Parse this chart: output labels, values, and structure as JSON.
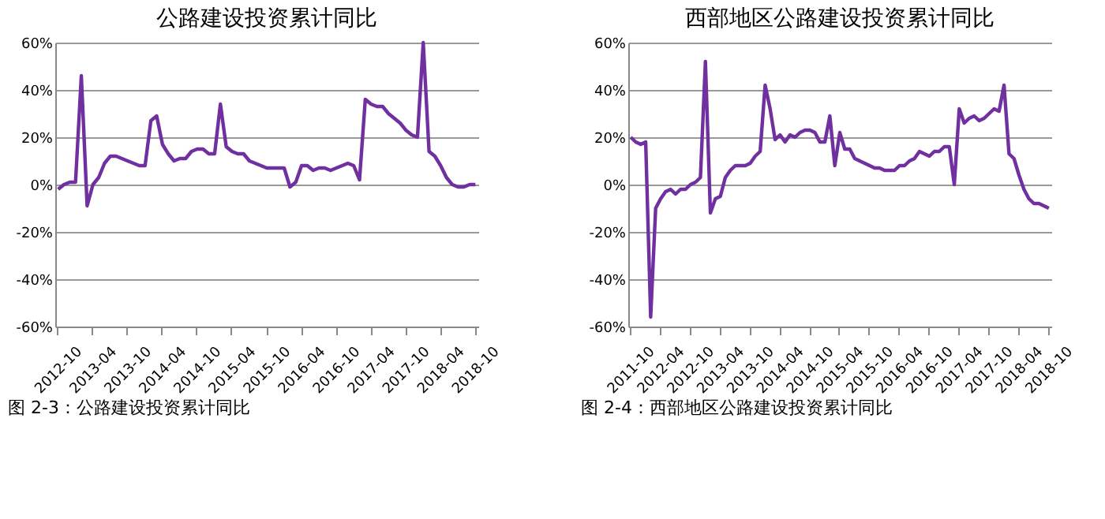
{
  "chart_data": [
    {
      "type": "line",
      "title": "公路建设投资累计同比",
      "annotations": [
        "图 2-3：公路建设投资累计同比"
      ],
      "categories": [
        "2012-10",
        null,
        null,
        null,
        null,
        null,
        "2013-04",
        null,
        null,
        null,
        null,
        null,
        "2013-10",
        null,
        null,
        null,
        null,
        null,
        "2014-04",
        null,
        null,
        null,
        null,
        null,
        "2014-10",
        null,
        null,
        null,
        null,
        null,
        "2015-04",
        null,
        null,
        null,
        null,
        null,
        "2015-10",
        null,
        null,
        null,
        null,
        null,
        "2016-04",
        null,
        null,
        null,
        null,
        null,
        "2016-10",
        null,
        null,
        null,
        null,
        null,
        "2017-04",
        null,
        null,
        null,
        null,
        null,
        "2017-10",
        null,
        null,
        null,
        null,
        null,
        "2018-04",
        null,
        null,
        null,
        null,
        null,
        "2018-10"
      ],
      "series": [
        {
          "color": "#7030a0",
          "values": [
            -2,
            0,
            1,
            1,
            46,
            -9,
            0,
            3,
            9,
            12,
            12,
            11,
            10,
            9,
            8,
            8,
            27,
            29,
            17,
            13,
            10,
            11,
            11,
            14,
            15,
            15,
            13,
            13,
            34,
            16,
            14,
            13,
            13,
            10,
            9,
            8,
            7,
            7,
            7,
            7,
            -1,
            1,
            8,
            8,
            6,
            7,
            7,
            6,
            7,
            8,
            9,
            8,
            2,
            36,
            34,
            33,
            33,
            30,
            28,
            26,
            23,
            21,
            20,
            60,
            14,
            12,
            8,
            3,
            0,
            -1,
            -1,
            0,
            0
          ]
        }
      ],
      "ylim": [
        -60,
        60
      ],
      "yticks": [
        {
          "value": -60,
          "label": "-60%"
        },
        {
          "value": -40,
          "label": "-40%"
        },
        {
          "value": -20,
          "label": "-20%"
        },
        {
          "value": 0,
          "label": "0%"
        },
        {
          "value": 20,
          "label": "20%"
        },
        {
          "value": 40,
          "label": "40%"
        },
        {
          "value": 60,
          "label": "60%"
        }
      ],
      "grid": "y",
      "marker": "none",
      "line_style": "solid"
    },
    {
      "type": "line",
      "title": "西部地区公路建设投资累计同比",
      "annotations": [
        "图 2-4：西部地区公路建设投资累计同比"
      ],
      "categories": [
        "2011-10",
        null,
        null,
        null,
        null,
        null,
        "2012-04",
        null,
        null,
        null,
        null,
        null,
        "2012-10",
        null,
        null,
        null,
        null,
        null,
        "2013-04",
        null,
        null,
        null,
        null,
        null,
        "2013-10",
        null,
        null,
        null,
        null,
        null,
        "2014-04",
        null,
        null,
        null,
        null,
        null,
        "2014-10",
        null,
        null,
        null,
        null,
        null,
        "2015-04",
        null,
        null,
        null,
        null,
        null,
        "2015-10",
        null,
        null,
        null,
        null,
        null,
        "2016-04",
        null,
        null,
        null,
        null,
        null,
        "2016-10",
        null,
        null,
        null,
        null,
        null,
        "2017-04",
        null,
        null,
        null,
        null,
        null,
        "2017-10",
        null,
        null,
        null,
        null,
        null,
        "2018-04",
        null,
        null,
        null,
        null,
        null,
        "2018-10"
      ],
      "series": [
        {
          "color": "#7030a0",
          "values": [
            20,
            18,
            17,
            18,
            -56,
            -10,
            -6,
            -3,
            -2,
            -4,
            -2,
            -2,
            0,
            1,
            3,
            52,
            -12,
            -6,
            -5,
            3,
            6,
            8,
            8,
            8,
            9,
            12,
            14,
            42,
            32,
            19,
            21,
            18,
            21,
            20,
            22,
            23,
            23,
            22,
            18,
            18,
            29,
            8,
            22,
            15,
            15,
            11,
            10,
            9,
            8,
            7,
            7,
            6,
            6,
            6,
            8,
            8,
            10,
            11,
            14,
            13,
            12,
            14,
            14,
            16,
            16,
            0,
            32,
            26,
            28,
            29,
            27,
            28,
            30,
            32,
            31,
            42,
            13,
            11,
            4,
            -2,
            -6,
            -8,
            -8,
            -9,
            -10
          ]
        }
      ],
      "ylim": [
        -60,
        60
      ],
      "yticks": [
        {
          "value": -60,
          "label": "-60%"
        },
        {
          "value": -40,
          "label": "-40%"
        },
        {
          "value": -20,
          "label": "-20%"
        },
        {
          "value": 0,
          "label": "0%"
        },
        {
          "value": 20,
          "label": "20%"
        },
        {
          "value": 40,
          "label": "40%"
        },
        {
          "value": 60,
          "label": "60%"
        }
      ],
      "grid": "y",
      "marker": "none",
      "line_style": "solid"
    }
  ]
}
